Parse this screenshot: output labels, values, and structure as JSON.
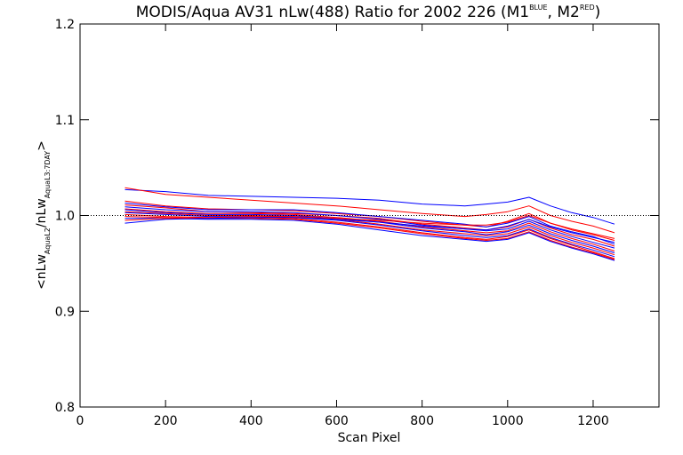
{
  "chart_data": {
    "type": "line",
    "title": {
      "text_a": "MODIS/Aqua AV31 nLw(488) Ratio for 2002 226 (M1",
      "sup_1": "BLUE",
      "text_b": ", M2",
      "sup_2": "RED",
      "text_c": ")"
    },
    "xlabel": "Scan Pixel",
    "ylabel": {
      "part_1": "<nLw",
      "sub_1": "AquaL2",
      "part_2": "/nLw",
      "sub_2": "AquaL3:7DAY",
      "part_3": ">"
    },
    "xlim": [
      0,
      1354
    ],
    "ylim": [
      0.8,
      1.2
    ],
    "x_ticks": [
      0,
      200,
      400,
      600,
      800,
      1000,
      1200
    ],
    "x_tick_labels": [
      "0",
      "200",
      "400",
      "600",
      "800",
      "1000",
      "1200"
    ],
    "y_ticks": [
      0.8,
      0.9,
      1.0,
      1.1,
      1.2
    ],
    "y_tick_labels": [
      "0.8",
      "0.9",
      "1.0",
      "1.1",
      "1.2"
    ],
    "reference_line": 1.0,
    "x": [
      105,
      200,
      300,
      400,
      500,
      600,
      700,
      800,
      900,
      950,
      1000,
      1050,
      1100,
      1150,
      1200,
      1250
    ],
    "series": [
      {
        "color": "#0000ff",
        "values": [
          1.027,
          1.025,
          1.021,
          1.02,
          1.019,
          1.018,
          1.016,
          1.012,
          1.01,
          1.012,
          1.014,
          1.019,
          1.01,
          1.003,
          0.998,
          0.991
        ]
      },
      {
        "color": "#ff0000",
        "values": [
          1.029,
          1.022,
          1.019,
          1.016,
          1.013,
          1.01,
          1.006,
          1.002,
          0.999,
          1.001,
          1.004,
          1.01,
          1.0,
          0.994,
          0.989,
          0.982
        ]
      },
      {
        "color": "#ff0000",
        "values": [
          1.015,
          1.01,
          1.007,
          1.006,
          1.005,
          1.002,
          0.999,
          0.994,
          0.99,
          0.988,
          0.994,
          1.002,
          0.992,
          0.985,
          0.98,
          0.974
        ]
      },
      {
        "color": "#0000ff",
        "values": [
          1.013,
          1.009,
          1.006,
          1.006,
          1.006,
          1.003,
          0.999,
          0.995,
          0.991,
          0.988,
          0.992,
          0.999,
          0.989,
          0.983,
          0.978,
          0.97
        ]
      },
      {
        "color": "#ff0000",
        "values": [
          1.011,
          1.008,
          1.004,
          1.003,
          1.002,
          1.0,
          0.997,
          0.991,
          0.987,
          0.985,
          0.988,
          0.996,
          0.987,
          0.98,
          0.975,
          0.968
        ]
      },
      {
        "color": "#0000ff",
        "values": [
          1.009,
          1.006,
          1.004,
          1.004,
          1.003,
          1.0,
          0.996,
          0.99,
          0.986,
          0.984,
          0.986,
          0.994,
          0.985,
          0.978,
          0.972,
          0.966
        ]
      },
      {
        "color": "#ff0000",
        "values": [
          1.007,
          1.004,
          1.002,
          1.002,
          1.001,
          0.998,
          0.994,
          0.988,
          0.984,
          0.982,
          0.984,
          0.992,
          0.983,
          0.976,
          0.97,
          0.963
        ]
      },
      {
        "color": "#0000ff",
        "values": [
          1.006,
          1.003,
          1.001,
          1.001,
          1.0,
          0.997,
          0.993,
          0.987,
          0.983,
          0.98,
          0.983,
          0.99,
          0.981,
          0.974,
          0.968,
          0.961
        ]
      },
      {
        "color": "#ff0000",
        "values": [
          1.004,
          1.002,
          1.0,
          1.0,
          0.999,
          0.996,
          0.991,
          0.985,
          0.981,
          0.979,
          0.981,
          0.988,
          0.979,
          0.972,
          0.966,
          0.959
        ]
      },
      {
        "color": "#0000ff",
        "values": [
          1.003,
          1.001,
          0.999,
          0.999,
          0.998,
          0.995,
          0.99,
          0.984,
          0.979,
          0.977,
          0.979,
          0.986,
          0.977,
          0.97,
          0.964,
          0.957
        ]
      },
      {
        "color": "#ff0000",
        "values": [
          1.001,
          0.999,
          0.998,
          0.998,
          0.997,
          0.993,
          0.988,
          0.982,
          0.977,
          0.975,
          0.978,
          0.985,
          0.976,
          0.969,
          0.962,
          0.955
        ]
      },
      {
        "color": "#ff0000",
        "values": [
          0.999,
          0.998,
          0.997,
          0.997,
          0.996,
          0.992,
          0.987,
          0.981,
          0.976,
          0.974,
          0.976,
          0.983,
          0.974,
          0.967,
          0.961,
          0.954
        ]
      },
      {
        "color": "#0000ff",
        "values": [
          0.997,
          0.997,
          0.996,
          0.996,
          0.995,
          0.991,
          0.985,
          0.979,
          0.975,
          0.973,
          0.975,
          0.982,
          0.973,
          0.966,
          0.96,
          0.953
        ]
      },
      {
        "color": "#0000ff",
        "values": [
          0.992,
          0.996,
          0.997,
          0.998,
          0.998,
          0.996,
          0.993,
          0.989,
          0.986,
          0.985,
          0.989,
          0.996,
          0.988,
          0.982,
          0.977,
          0.972
        ]
      },
      {
        "color": "#ff0000",
        "values": [
          0.995,
          0.997,
          0.998,
          0.999,
          0.999,
          0.997,
          0.995,
          0.992,
          0.99,
          0.99,
          0.993,
          1.0,
          0.992,
          0.986,
          0.981,
          0.976
        ]
      }
    ]
  }
}
